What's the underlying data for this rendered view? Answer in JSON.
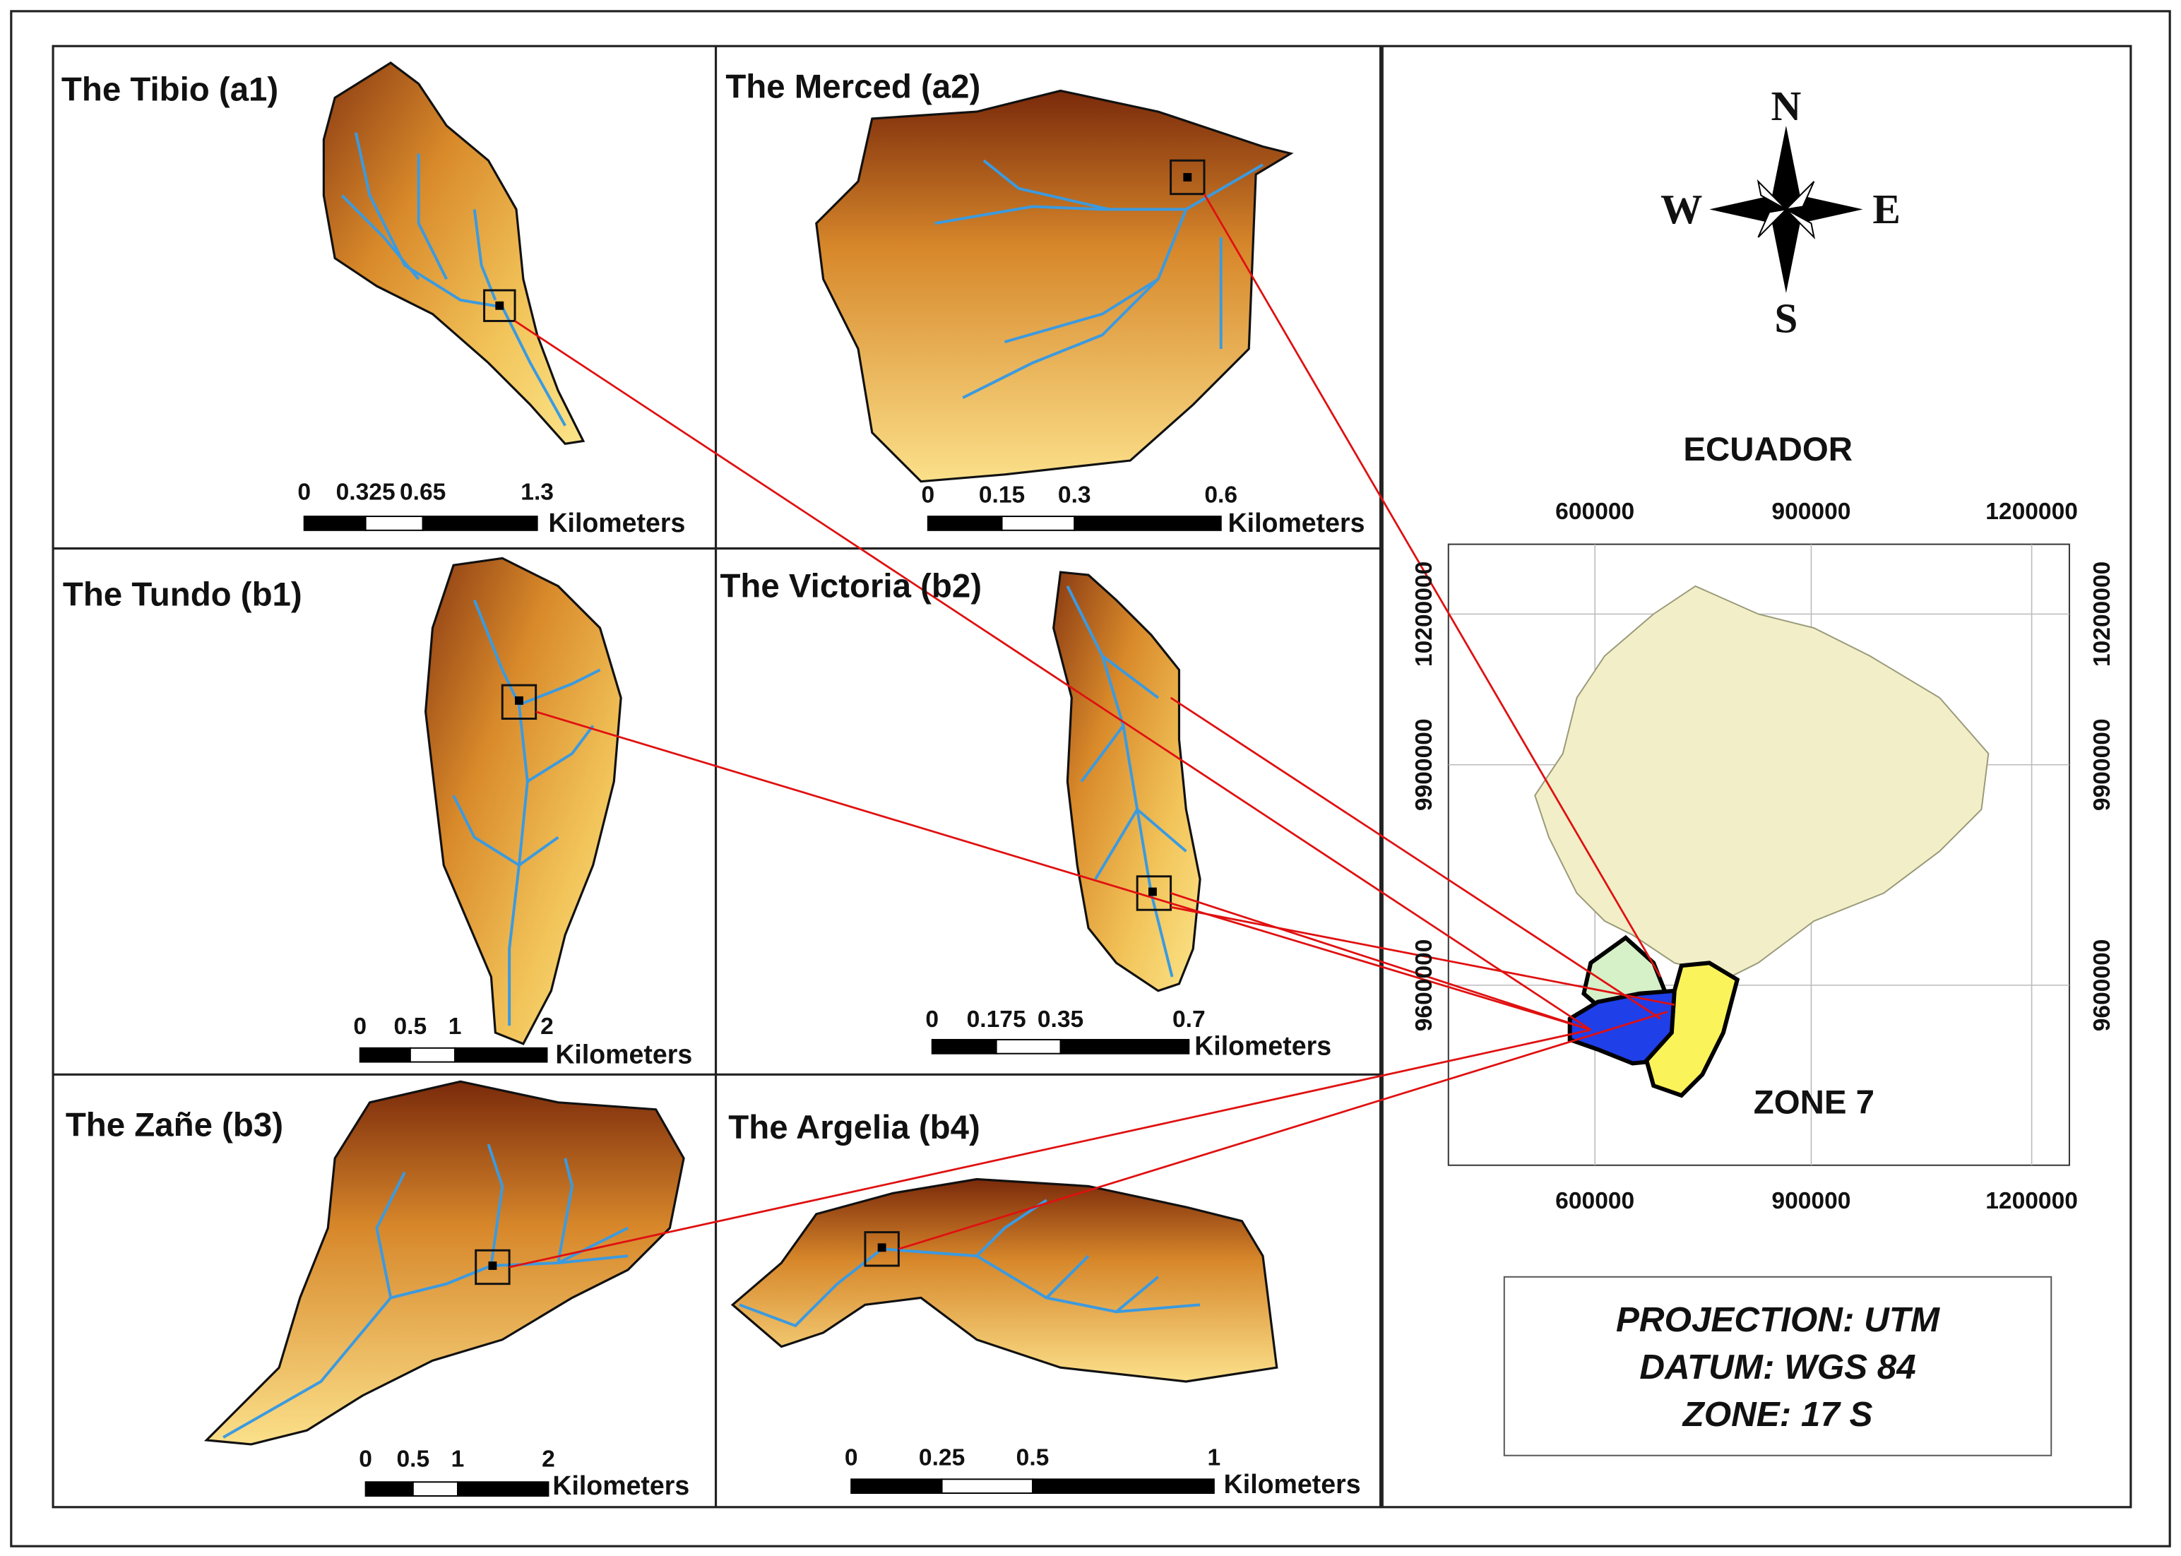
{
  "panels": [
    {
      "title": "The Tibio (a1)",
      "scale_labels": [
        "0",
        "0.325",
        "0.65",
        "1.3"
      ],
      "unit": "Kilometers"
    },
    {
      "title": "The Merced (a2)",
      "scale_labels": [
        "0",
        "0.15",
        "0.3",
        "0.6"
      ],
      "unit": "Kilometers"
    },
    {
      "title": "The Tundo (b1)",
      "scale_labels": [
        "0",
        "0.5",
        "1",
        "2"
      ],
      "unit": "Kilometers"
    },
    {
      "title": "The Victoria (b2)",
      "scale_labels": [
        "0",
        "0.175",
        "0.35",
        "0.7"
      ],
      "unit": "Kilometers"
    },
    {
      "title": "The Zañe (b3)",
      "scale_labels": [
        "0",
        "0.5",
        "1",
        "2"
      ],
      "unit": "Kilometers"
    },
    {
      "title": "The Argelia (b4)",
      "scale_labels": [
        "0",
        "0.25",
        "0.5",
        "1"
      ],
      "unit": "Kilometers"
    }
  ],
  "compass": {
    "north": "N",
    "south": "S",
    "east": "E",
    "west": "W"
  },
  "inset": {
    "title": "ECUADOR",
    "x_ticks": [
      "600000",
      "900000",
      "1200000"
    ],
    "y_ticks": [
      "10200000",
      "9900000",
      "9600000"
    ],
    "region_label": "ZONE 7"
  },
  "projection": [
    "PROJECTION: UTM",
    "DATUM: WGS 84",
    "ZONE: 17 S"
  ]
}
